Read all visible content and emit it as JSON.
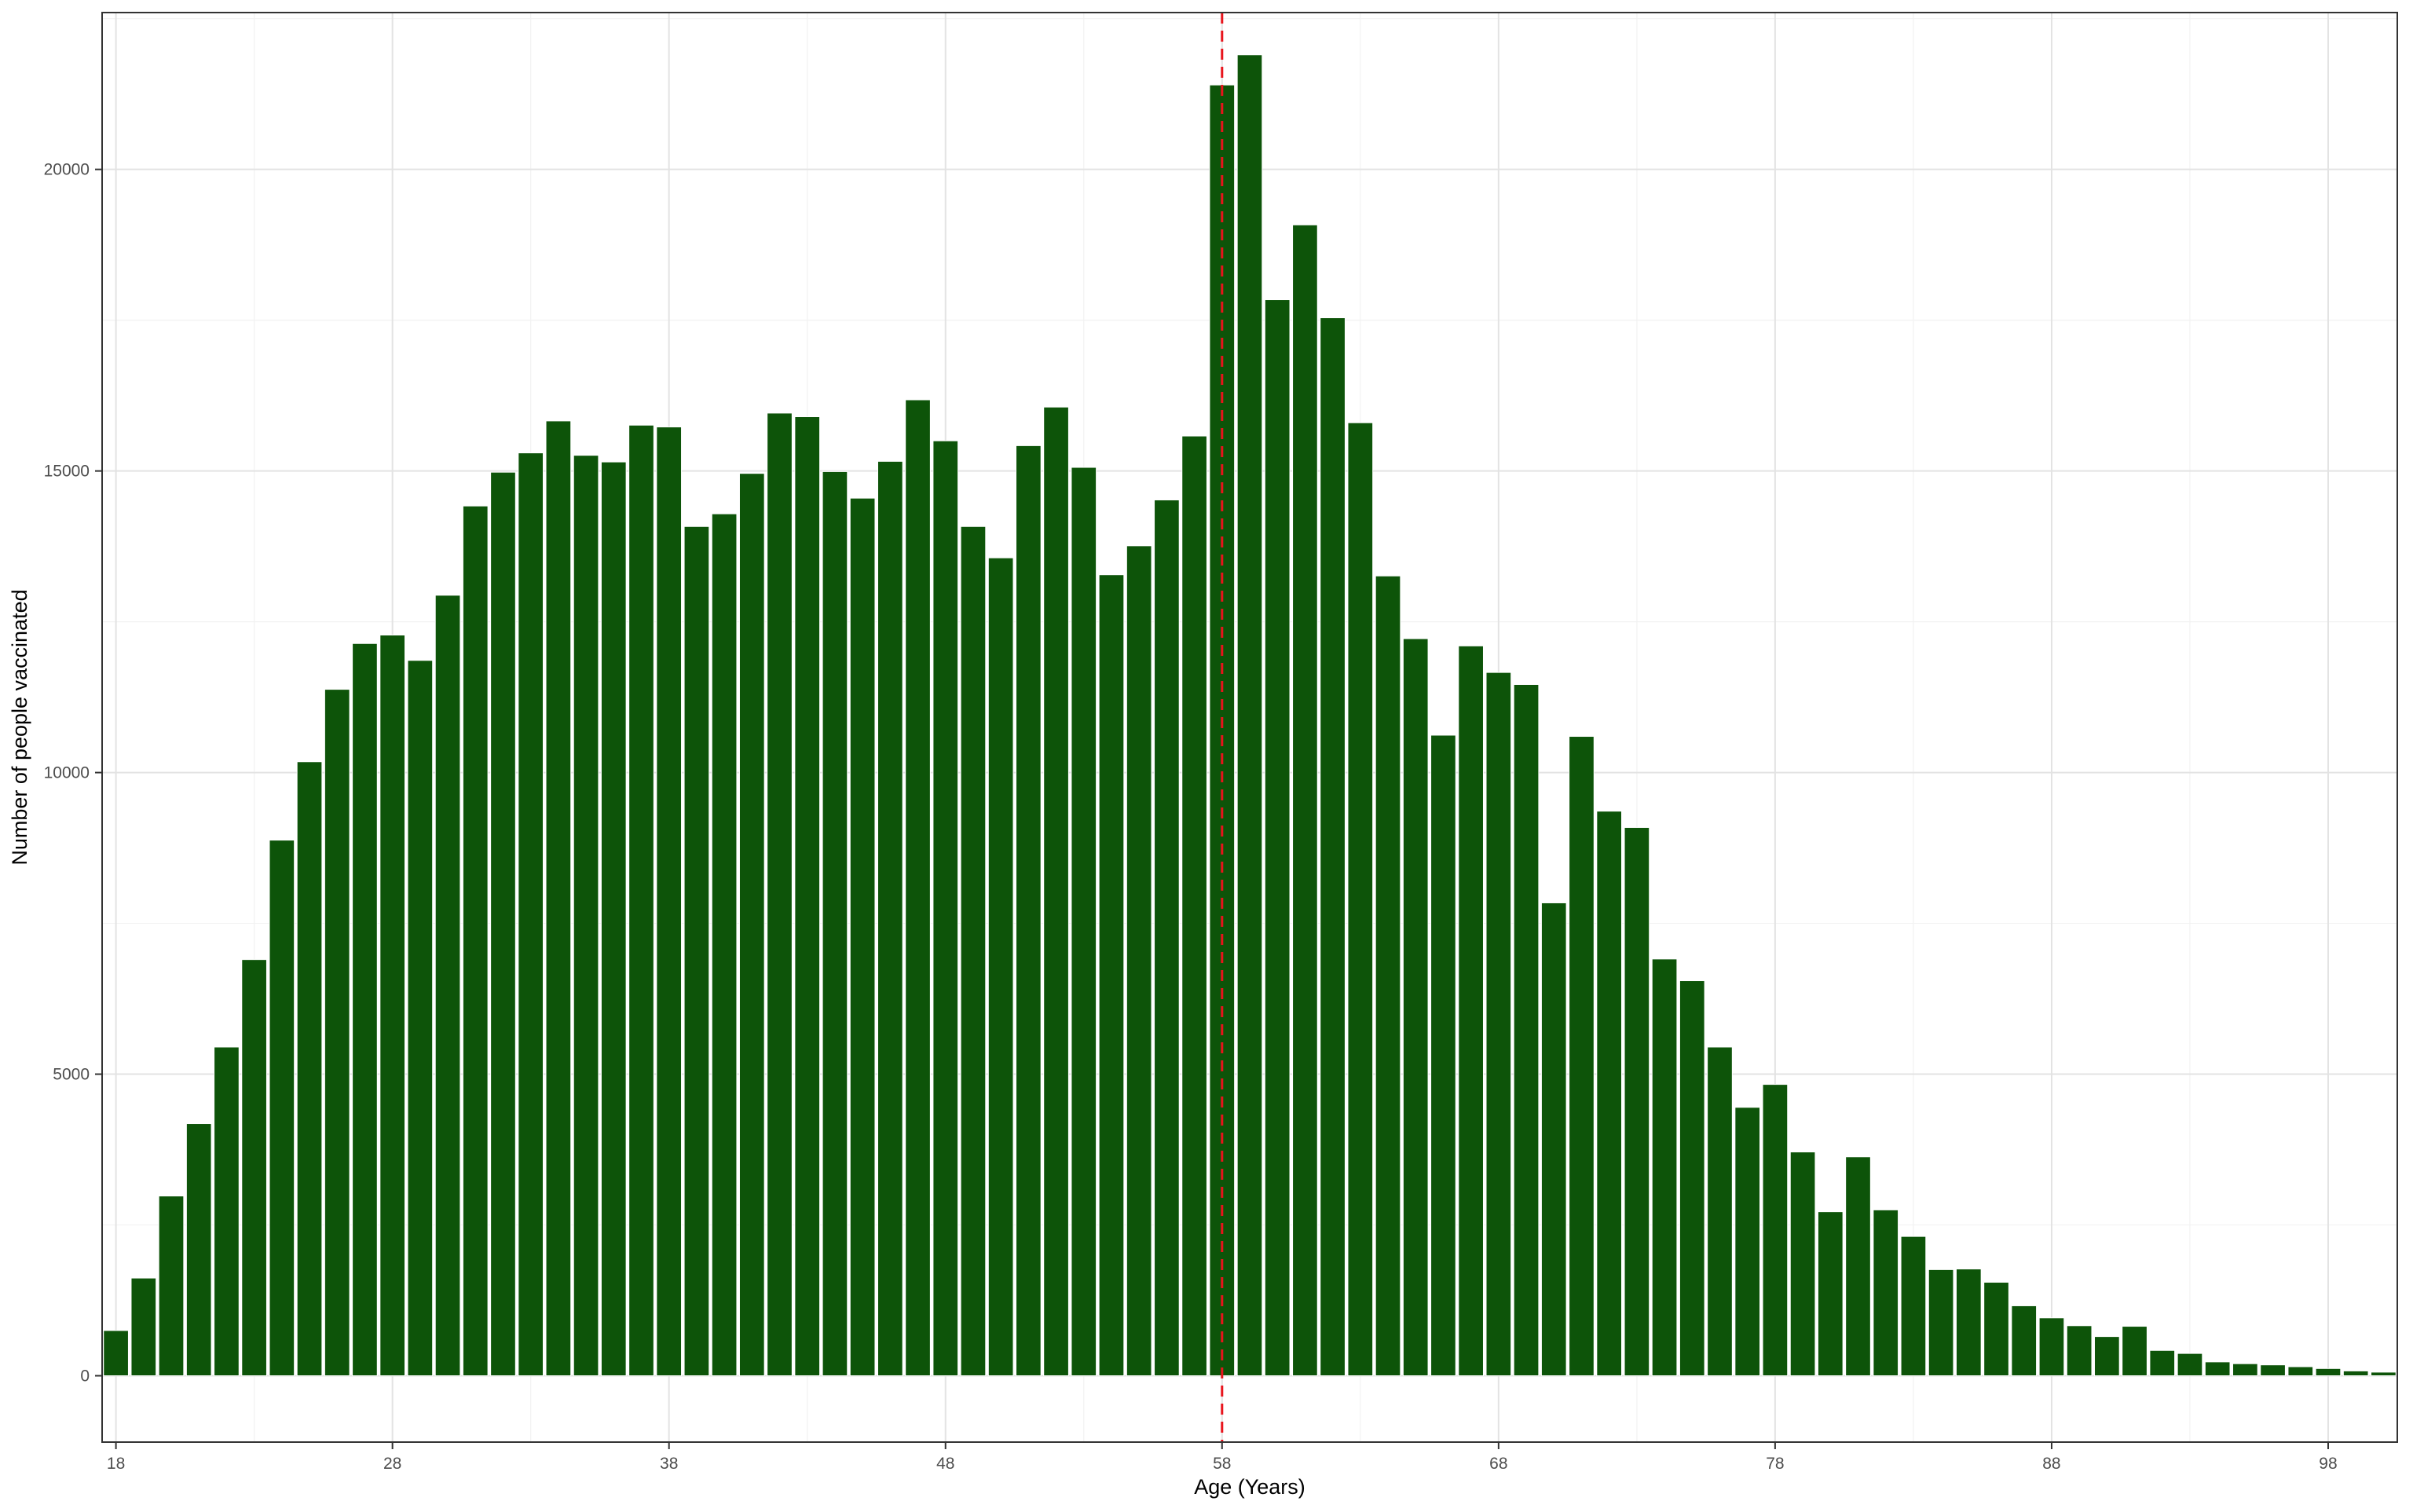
{
  "chart_data": {
    "type": "bar",
    "title": "",
    "xlabel": "Age (Years)",
    "ylabel": "Number of people vaccinated",
    "x": [
      18,
      19,
      20,
      21,
      22,
      23,
      24,
      25,
      26,
      27,
      28,
      29,
      30,
      31,
      32,
      33,
      34,
      35,
      36,
      37,
      38,
      39,
      40,
      41,
      42,
      43,
      44,
      45,
      46,
      47,
      48,
      49,
      50,
      51,
      52,
      53,
      54,
      55,
      56,
      57,
      58,
      59,
      60,
      61,
      62,
      63,
      64,
      65,
      66,
      67,
      68,
      69,
      70,
      71,
      72,
      73,
      74,
      75,
      76,
      77,
      78,
      79,
      80,
      81,
      82,
      83,
      84,
      85,
      86,
      87,
      88,
      89,
      90,
      91,
      92,
      93,
      94,
      95,
      96,
      97,
      98,
      99,
      100
    ],
    "values": [
      750,
      1620,
      2980,
      4180,
      5450,
      6900,
      8880,
      10180,
      11380,
      12140,
      12280,
      11860,
      12940,
      14420,
      14980,
      15300,
      15830,
      15260,
      15150,
      15760,
      15730,
      14080,
      14290,
      14960,
      15960,
      15900,
      14990,
      14550,
      15160,
      16180,
      15500,
      14080,
      13560,
      15420,
      16060,
      15060,
      13280,
      13760,
      14520,
      15580,
      21400,
      21900,
      17840,
      19080,
      17540,
      15800,
      13260,
      12220,
      10620,
      12100,
      11660,
      11460,
      7840,
      10600,
      9360,
      9090,
      6910,
      6550,
      5450,
      4450,
      4830,
      3710,
      2720,
      3630,
      2750,
      2310,
      1760,
      1770,
      1550,
      1160,
      960,
      830,
      650,
      820,
      420,
      370,
      230,
      200,
      180,
      150,
      120,
      80,
      60
    ],
    "xticks": [
      18,
      28,
      38,
      48,
      58,
      68,
      78,
      88,
      98
    ],
    "xtick_labels": [
      "18",
      "28",
      "38",
      "48",
      "58",
      "68",
      "78",
      "88",
      "98"
    ],
    "yticks": [
      0,
      5000,
      10000,
      15000,
      20000
    ],
    "ytick_labels": [
      "0",
      "5000",
      "10000",
      "15000",
      "20000"
    ],
    "xlim": [
      17.5,
      100.5
    ],
    "ylim": [
      -1100,
      22600
    ],
    "reference_line": {
      "x": 58,
      "style": "dashed"
    },
    "grid": true,
    "legend": "none"
  },
  "colors": {
    "bar": "#0d5409",
    "bar_outline": "#ffffff",
    "reference_line": "#e8141c",
    "grid_major": "#e3e3e3",
    "grid_minor": "#f2f2f2",
    "panel_border": "#333333",
    "background": "#ffffff"
  }
}
